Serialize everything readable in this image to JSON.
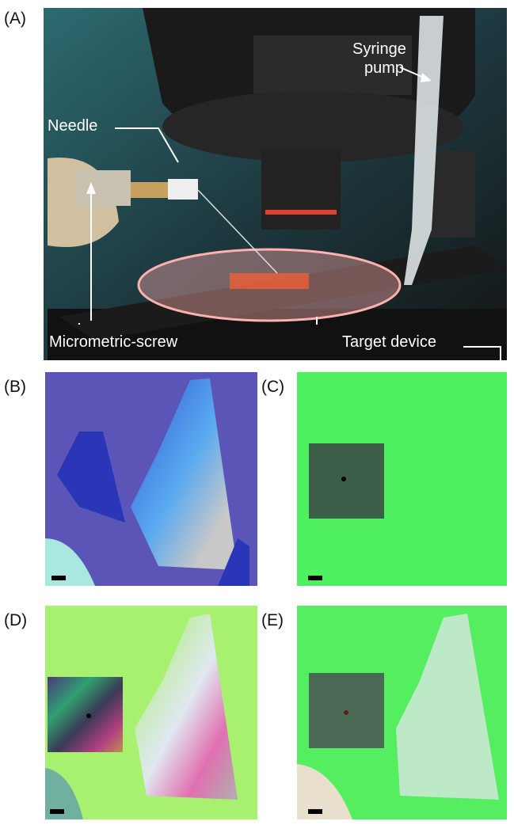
{
  "panels": [
    {
      "label": "(A)"
    },
    {
      "label": "(B)"
    },
    {
      "label": "(C)"
    },
    {
      "label": "(D)"
    },
    {
      "label": "(E)"
    }
  ],
  "annotations": {
    "needle": "Needle",
    "syringe_pump": [
      "Syringe",
      "pump"
    ],
    "micrometric_screw": "Micrometric-screw",
    "target_device": "Target device"
  }
}
